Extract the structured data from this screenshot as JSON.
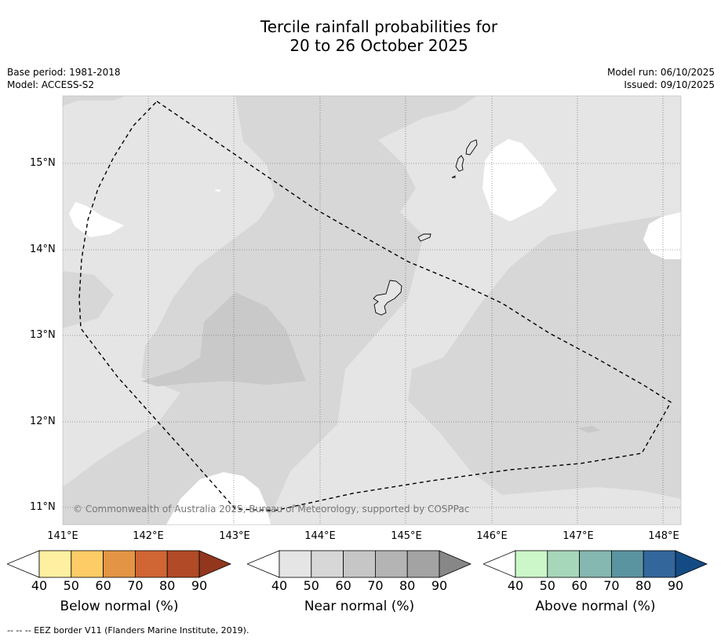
{
  "title": {
    "line1": "Tercile rainfall probabilities for",
    "line2": "20 to 26 October 2025"
  },
  "meta": {
    "base_period": "Base period: 1981-2018",
    "model": "Model: ACCESS-S2",
    "model_run": "Model run: 06/10/2025",
    "issued": "Issued: 09/10/2025"
  },
  "map": {
    "lat_labels": [
      "15°N",
      "14°N",
      "13°N",
      "12°N",
      "11°N"
    ],
    "lon_labels": [
      "141°E",
      "142°E",
      "143°E",
      "144°E",
      "145°E",
      "146°E",
      "147°E",
      "148°E"
    ],
    "copyright": "© Commonwealth of Australia 2025, Bureau of Meteorology, supported by COSPPac",
    "colors": {
      "land_outline": "#000000",
      "white": "#ffffff",
      "near_40": "#e5e5e5",
      "near_50": "#d7d7d7",
      "near_60": "#c9c9c9"
    }
  },
  "colorbars": [
    {
      "label": "Below normal (%)",
      "ticks": [
        "40",
        "50",
        "60",
        "70",
        "80",
        "90"
      ],
      "colors": [
        "#ffffff",
        "#fef0a0",
        "#fecc66",
        "#e39545",
        "#cf6633",
        "#b04a27",
        "#92361e"
      ]
    },
    {
      "label": "Near normal (%)",
      "ticks": [
        "40",
        "50",
        "60",
        "70",
        "80",
        "90"
      ],
      "colors": [
        "#ffffff",
        "#e5e5e5",
        "#d7d7d7",
        "#c6c6c6",
        "#b4b4b4",
        "#a3a3a3",
        "#878787"
      ]
    },
    {
      "label": "Above normal (%)",
      "ticks": [
        "40",
        "50",
        "60",
        "70",
        "80",
        "90"
      ],
      "colors": [
        "#ffffff",
        "#ccf7c9",
        "#a6d7bb",
        "#84b8b0",
        "#5b94a1",
        "#33679b",
        "#154b84"
      ]
    }
  ],
  "footnote": "--  --  -- EEZ border V11 (Flanders Marine Institute, 2019)."
}
